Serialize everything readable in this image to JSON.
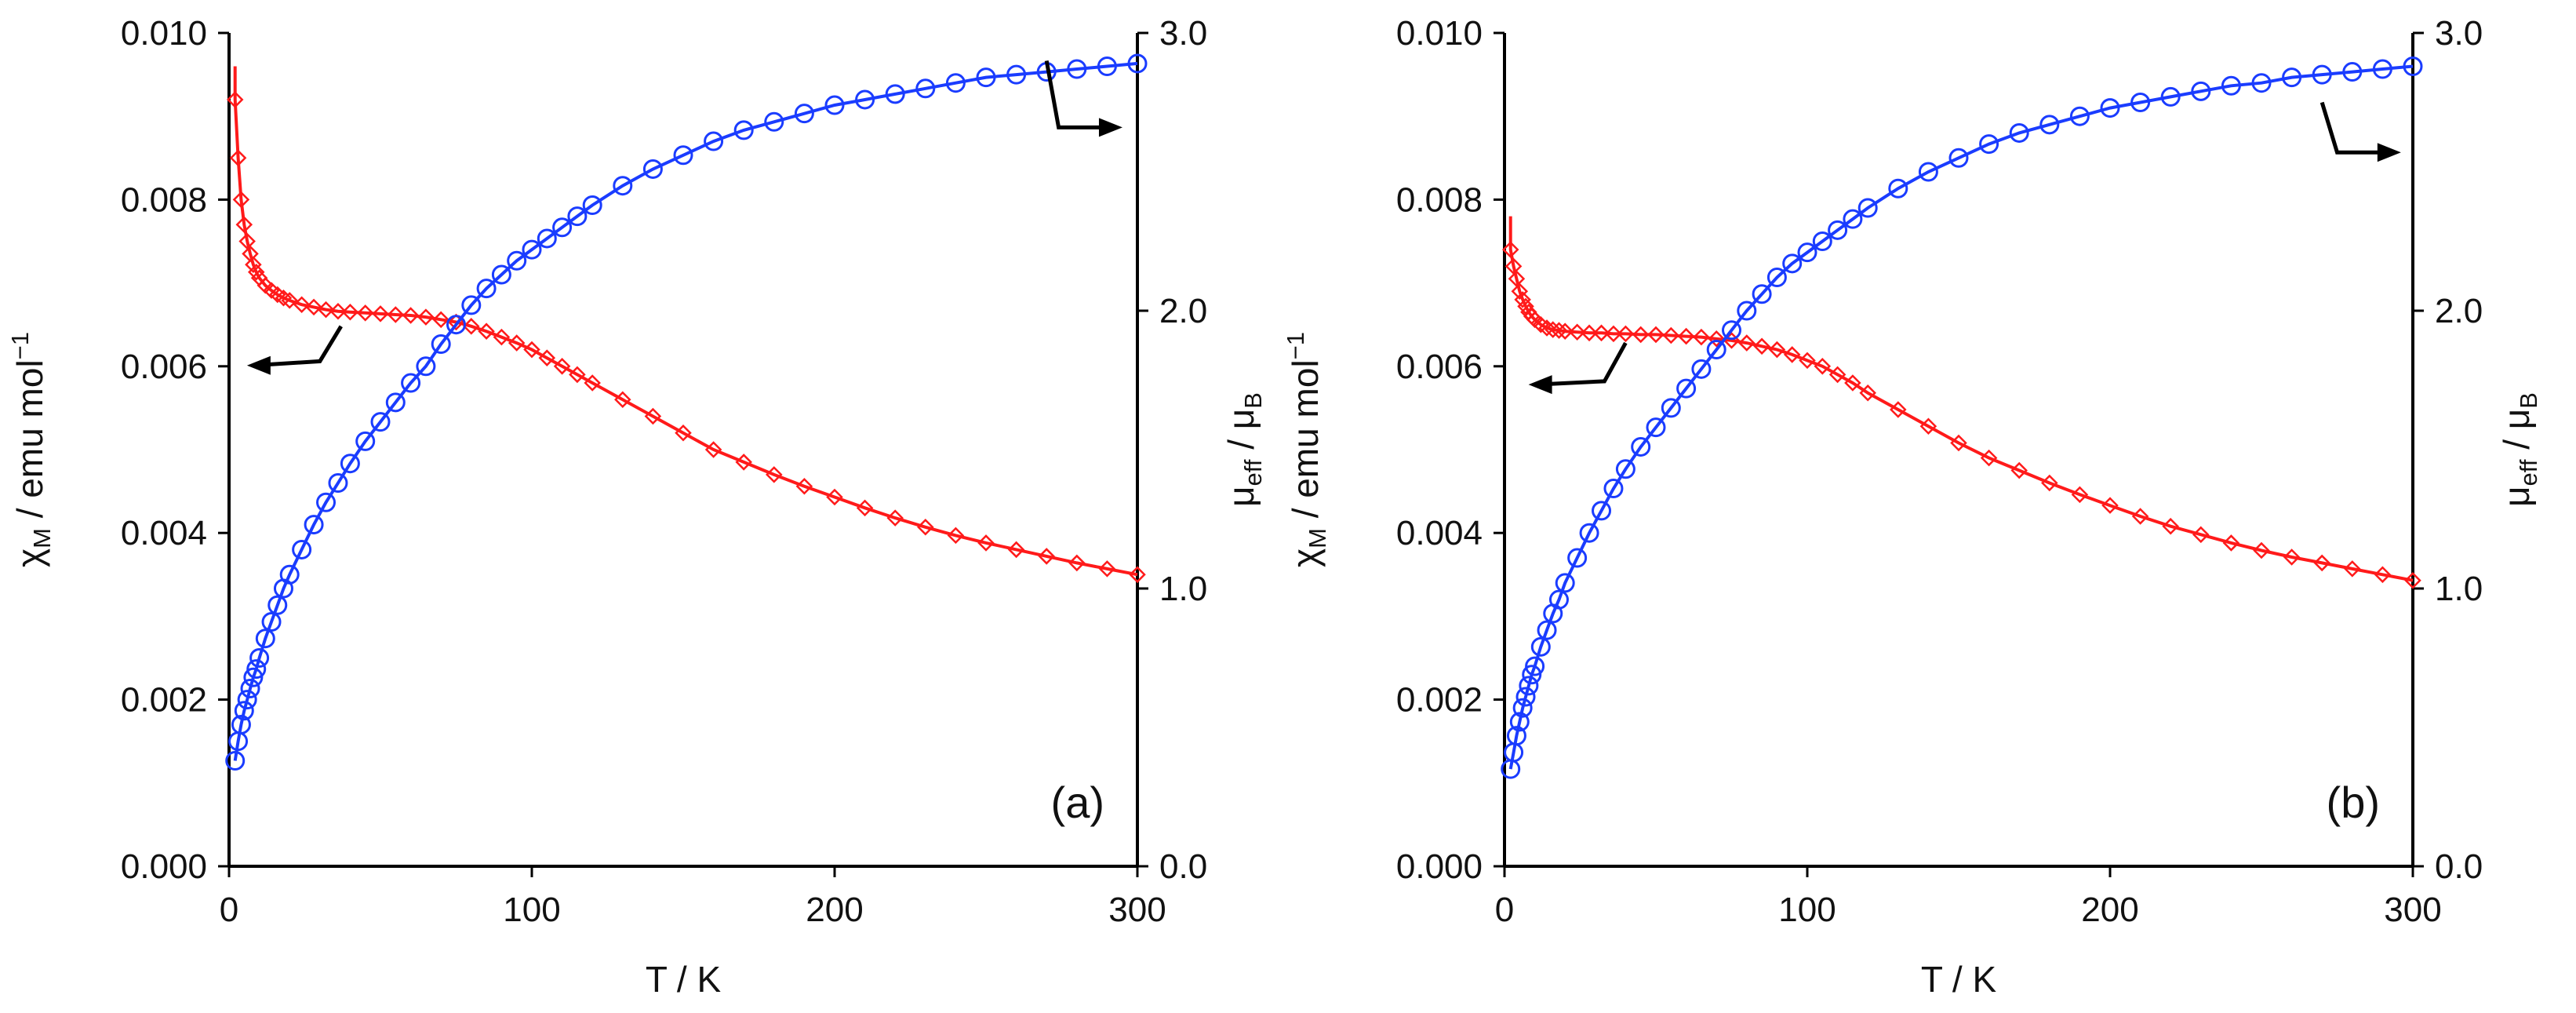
{
  "figure": {
    "colors": {
      "chi": "#ff1a1a",
      "mu": "#1a3cff",
      "axis": "#000000"
    }
  },
  "chart_data": [
    {
      "type": "scatter",
      "panel_label": "(a)",
      "title": "",
      "xlabel": "T / K",
      "ylabel_left": {
        "main": "χ",
        "sub": "M",
        "rest": " / emu mol",
        "sup": "−1"
      },
      "ylabel_right": {
        "main": "μ",
        "sub": "eff",
        "rest": " / μ",
        "sub2": "B"
      },
      "xlim": [
        0,
        300
      ],
      "ylim_left": [
        0,
        0.01
      ],
      "ylim_right": [
        0,
        3
      ],
      "x_ticks": [
        "0",
        "100",
        "200",
        "300"
      ],
      "y_ticks_left": [
        "0.000",
        "0.002",
        "0.004",
        "0.006",
        "0.008",
        "0.010"
      ],
      "y_ticks_right": [
        "0.0",
        "1.0",
        "2.0",
        "3.0"
      ],
      "arrows": [
        {
          "series": "χM",
          "axis": "left",
          "points": [
            [
              37,
              0.00648
            ],
            [
              30,
              0.00606
            ],
            [
              8,
              0.00601
            ]
          ]
        },
        {
          "series": "μeff",
          "axis": "right",
          "points": [
            [
              270,
              2.9
            ],
            [
              274,
              2.66
            ],
            [
              293,
              2.66
            ]
          ]
        }
      ],
      "series": [
        {
          "name": "χM",
          "axis": "left",
          "marker": "diamond",
          "color": "#ff1a1a",
          "x": [
            2,
            3,
            4,
            5,
            6,
            7,
            8,
            9,
            10,
            12,
            14,
            16,
            18,
            20,
            24,
            28,
            32,
            36,
            40,
            45,
            50,
            55,
            60,
            65,
            70,
            75,
            80,
            85,
            90,
            95,
            100,
            105,
            110,
            115,
            120,
            130,
            140,
            150,
            160,
            170,
            180,
            190,
            200,
            210,
            220,
            230,
            240,
            250,
            260,
            270,
            280,
            290,
            300
          ],
          "y": [
            0.0092,
            0.0085,
            0.008,
            0.0077,
            0.0075,
            0.00735,
            0.00722,
            0.00713,
            0.00706,
            0.00697,
            0.00691,
            0.00686,
            0.00682,
            0.00679,
            0.00674,
            0.00671,
            0.00668,
            0.00666,
            0.00665,
            0.00664,
            0.00663,
            0.00662,
            0.00661,
            0.00659,
            0.00656,
            0.00653,
            0.00648,
            0.00642,
            0.00635,
            0.00628,
            0.0062,
            0.0061,
            0.006,
            0.0059,
            0.0058,
            0.0056,
            0.0054,
            0.0052,
            0.005,
            0.00485,
            0.0047,
            0.00456,
            0.00443,
            0.0043,
            0.00418,
            0.00407,
            0.00397,
            0.00388,
            0.0038,
            0.00372,
            0.00364,
            0.00357,
            0.0035
          ]
        },
        {
          "name": "μeff",
          "axis": "right",
          "marker": "circle",
          "color": "#1a3cff",
          "x": [
            2,
            3,
            4,
            5,
            6,
            7,
            8,
            9,
            10,
            12,
            14,
            16,
            18,
            20,
            24,
            28,
            32,
            36,
            40,
            45,
            50,
            55,
            60,
            65,
            70,
            75,
            80,
            85,
            90,
            95,
            100,
            105,
            110,
            115,
            120,
            130,
            140,
            150,
            160,
            170,
            180,
            190,
            200,
            210,
            220,
            230,
            240,
            250,
            260,
            270,
            280,
            290,
            300
          ],
          "y": [
            0.38,
            0.45,
            0.51,
            0.56,
            0.6,
            0.64,
            0.68,
            0.71,
            0.75,
            0.82,
            0.88,
            0.94,
            1.0,
            1.05,
            1.14,
            1.23,
            1.31,
            1.38,
            1.45,
            1.53,
            1.6,
            1.67,
            1.74,
            1.8,
            1.88,
            1.95,
            2.02,
            2.08,
            2.13,
            2.18,
            2.22,
            2.26,
            2.3,
            2.34,
            2.38,
            2.45,
            2.51,
            2.56,
            2.61,
            2.65,
            2.68,
            2.71,
            2.74,
            2.76,
            2.78,
            2.8,
            2.82,
            2.84,
            2.85,
            2.86,
            2.87,
            2.88,
            2.89
          ]
        }
      ]
    },
    {
      "type": "scatter",
      "panel_label": "(b)",
      "title": "",
      "xlabel": "T / K",
      "ylabel_left": {
        "main": "χ",
        "sub": "M",
        "rest": " / emu mol",
        "sup": "−1"
      },
      "ylabel_right": {
        "main": "μ",
        "sub": "eff",
        "rest": " / μ",
        "sub2": "B"
      },
      "xlim": [
        0,
        300
      ],
      "ylim_left": [
        0,
        0.01
      ],
      "ylim_right": [
        0,
        3
      ],
      "x_ticks": [
        "0",
        "100",
        "200",
        "300"
      ],
      "y_ticks_left": [
        "0.000",
        "0.002",
        "0.004",
        "0.006",
        "0.008",
        "0.010"
      ],
      "y_ticks_right": [
        "0.0",
        "1.0",
        "2.0",
        "3.0"
      ],
      "arrows": [
        {
          "series": "χM",
          "axis": "left",
          "points": [
            [
              40,
              0.00628
            ],
            [
              33,
              0.00582
            ],
            [
              10,
              0.00578
            ]
          ]
        },
        {
          "series": "μeff",
          "axis": "right",
          "points": [
            [
              270,
              2.75
            ],
            [
              275,
              2.57
            ],
            [
              294,
              2.57
            ]
          ]
        }
      ],
      "series": [
        {
          "name": "χM",
          "axis": "left",
          "marker": "diamond",
          "color": "#ff1a1a",
          "x": [
            2,
            3,
            4,
            5,
            6,
            7,
            8,
            9,
            10,
            12,
            14,
            16,
            18,
            20,
            24,
            28,
            32,
            36,
            40,
            45,
            50,
            55,
            60,
            65,
            70,
            75,
            80,
            85,
            90,
            95,
            100,
            105,
            110,
            115,
            120,
            130,
            140,
            150,
            160,
            170,
            180,
            190,
            200,
            210,
            220,
            230,
            240,
            250,
            260,
            270,
            280,
            290,
            300
          ],
          "y": [
            0.0074,
            0.0072,
            0.00705,
            0.0069,
            0.0068,
            0.00672,
            0.00665,
            0.0066,
            0.00656,
            0.0065,
            0.00646,
            0.00644,
            0.00643,
            0.00642,
            0.00641,
            0.0064,
            0.0064,
            0.00639,
            0.00639,
            0.00638,
            0.00638,
            0.00637,
            0.00636,
            0.00635,
            0.00633,
            0.00631,
            0.00628,
            0.00624,
            0.0062,
            0.00614,
            0.00607,
            0.006,
            0.0059,
            0.0058,
            0.00568,
            0.00548,
            0.00528,
            0.00508,
            0.0049,
            0.00475,
            0.0046,
            0.00446,
            0.00433,
            0.0042,
            0.00408,
            0.00398,
            0.00388,
            0.00379,
            0.00371,
            0.00364,
            0.00357,
            0.0035,
            0.00343
          ]
        },
        {
          "name": "μeff",
          "axis": "right",
          "marker": "circle",
          "color": "#1a3cff",
          "x": [
            2,
            3,
            4,
            5,
            6,
            7,
            8,
            9,
            10,
            12,
            14,
            16,
            18,
            20,
            24,
            28,
            32,
            36,
            40,
            45,
            50,
            55,
            60,
            65,
            70,
            75,
            80,
            85,
            90,
            95,
            100,
            105,
            110,
            115,
            120,
            130,
            140,
            150,
            160,
            170,
            180,
            190,
            200,
            210,
            220,
            230,
            240,
            250,
            260,
            270,
            280,
            290,
            300
          ],
          "y": [
            0.35,
            0.41,
            0.47,
            0.52,
            0.57,
            0.61,
            0.65,
            0.69,
            0.72,
            0.79,
            0.85,
            0.91,
            0.96,
            1.02,
            1.11,
            1.2,
            1.28,
            1.36,
            1.43,
            1.51,
            1.58,
            1.65,
            1.72,
            1.79,
            1.86,
            1.93,
            2.0,
            2.06,
            2.12,
            2.17,
            2.21,
            2.25,
            2.29,
            2.33,
            2.37,
            2.44,
            2.5,
            2.55,
            2.6,
            2.64,
            2.67,
            2.7,
            2.73,
            2.75,
            2.77,
            2.79,
            2.81,
            2.82,
            2.84,
            2.85,
            2.86,
            2.87,
            2.88
          ]
        }
      ]
    }
  ]
}
